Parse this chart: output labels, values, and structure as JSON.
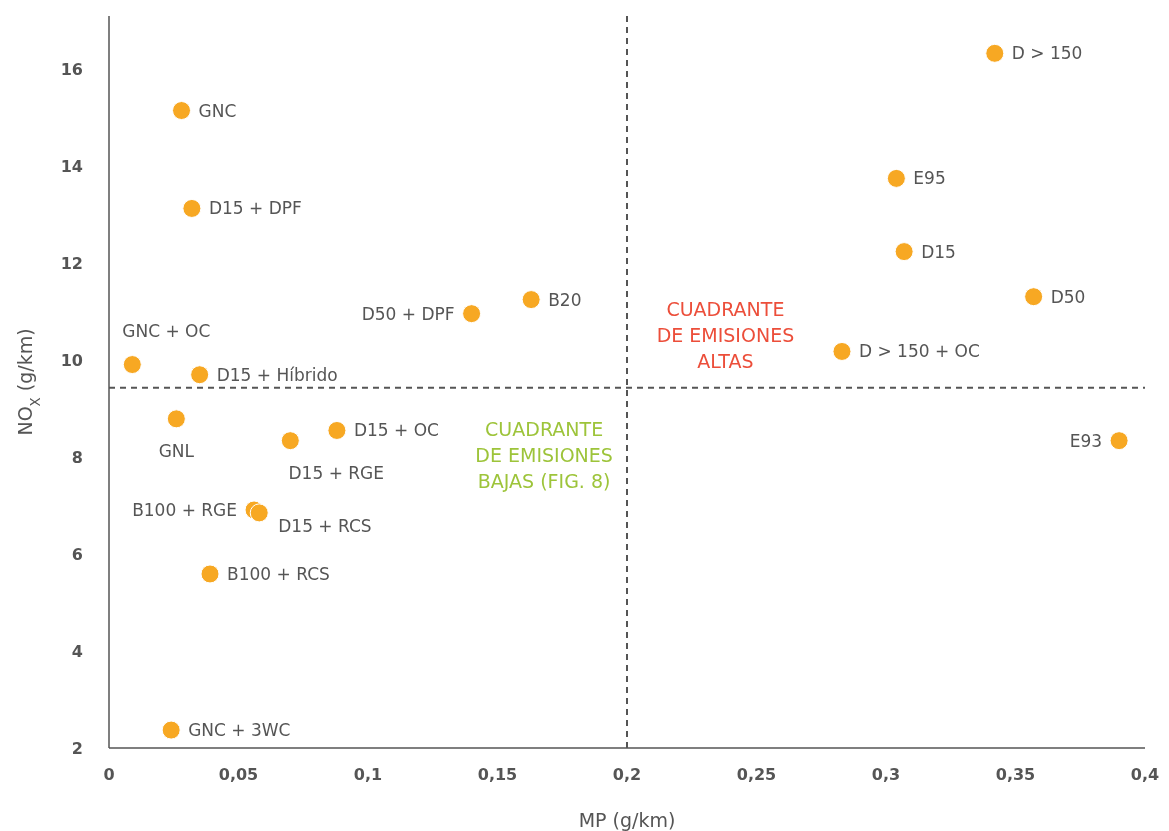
{
  "chart_data": {
    "type": "scatter",
    "xlabel": "MP (g/km)",
    "ylabel": "NO$_{X}$ (g/km)",
    "xlim": [
      0,
      0.4
    ],
    "ylim": [
      2,
      17.1
    ],
    "xticks": [
      0,
      {
        "value": 0.05,
        "label": "0,05"
      },
      {
        "value": 0.1,
        "label": "0,1"
      },
      {
        "value": 0.15,
        "label": "0,15"
      },
      {
        "value": 0.2,
        "label": "0,2"
      },
      {
        "value": 0.25,
        "label": "0,25"
      },
      {
        "value": 0.3,
        "label": "0,3"
      },
      {
        "value": 0.35,
        "label": "0,35"
      },
      {
        "value": 0.4,
        "label": "0,4"
      }
    ],
    "yticks": [
      2,
      4,
      6,
      8,
      10,
      12,
      14,
      16
    ],
    "grid": false,
    "marker": "circle",
    "series": [
      {
        "color": "#f7a823",
        "x": [
          0.028,
          0.032,
          0.009,
          0.035,
          0.026,
          0.07,
          0.088,
          0.056,
          0.058,
          0.039,
          0.024,
          0.14,
          0.163,
          0.342,
          0.304,
          0.307,
          0.357,
          0.283,
          0.39
        ],
        "values": [
          15.15,
          13.13,
          9.91,
          9.7,
          8.79,
          8.34,
          8.55,
          6.91,
          6.85,
          5.59,
          2.37,
          10.96,
          11.25,
          16.33,
          13.75,
          12.24,
          11.31,
          10.18,
          8.34
        ]
      }
    ],
    "ref_lines": [
      {
        "axis": "x",
        "value": 0.2,
        "color": "#555555",
        "line_style": "dashed"
      },
      {
        "axis": "y",
        "value": 9.43,
        "color": "#555555",
        "line_style": "dashed"
      }
    ],
    "annotations": [
      "CUADRANTE\nDE EMISIONES\nALTAS",
      "CUADRANTE\nDE EMISIONES\nBAJAS (FIG. 8)",
      {
        "text": "GNC",
        "x": 0.028,
        "y": 15.15
      },
      {
        "text": "D15 + DPF",
        "x": 0.032,
        "y": 13.13
      },
      {
        "text": "GNC + OC",
        "x": 0.009,
        "y": 9.91
      },
      {
        "text": "D15 + Híbrido",
        "x": 0.035,
        "y": 9.7
      },
      {
        "text": "GNL",
        "x": 0.026,
        "y": 8.79
      },
      {
        "text": "D15 + RGE",
        "x": 0.07,
        "y": 8.34
      },
      {
        "text": "D15 + OC",
        "x": 0.088,
        "y": 8.55
      },
      {
        "text": "B100 + RGE",
        "x": 0.056,
        "y": 6.91
      },
      {
        "text": "D15 + RCS",
        "x": 0.058,
        "y": 6.85
      },
      {
        "text": "B100 + RCS",
        "x": 0.039,
        "y": 5.59
      },
      {
        "text": "GNC + 3WC",
        "x": 0.024,
        "y": 2.37
      },
      {
        "text": "D50 + DPF",
        "x": 0.14,
        "y": 10.96
      },
      {
        "text": "B20",
        "x": 0.163,
        "y": 11.25
      },
      {
        "text": "D > 150",
        "x": 0.342,
        "y": 16.33
      },
      {
        "text": "E95",
        "x": 0.304,
        "y": 13.75
      },
      {
        "text": "D15",
        "x": 0.307,
        "y": 12.24
      },
      {
        "text": "D50",
        "x": 0.357,
        "y": 11.31
      },
      {
        "text": "D > 150 + OC",
        "x": 0.283,
        "y": 10.18
      },
      {
        "text": "E93",
        "x": 0.39,
        "y": 8.34
      }
    ]
  }
}
